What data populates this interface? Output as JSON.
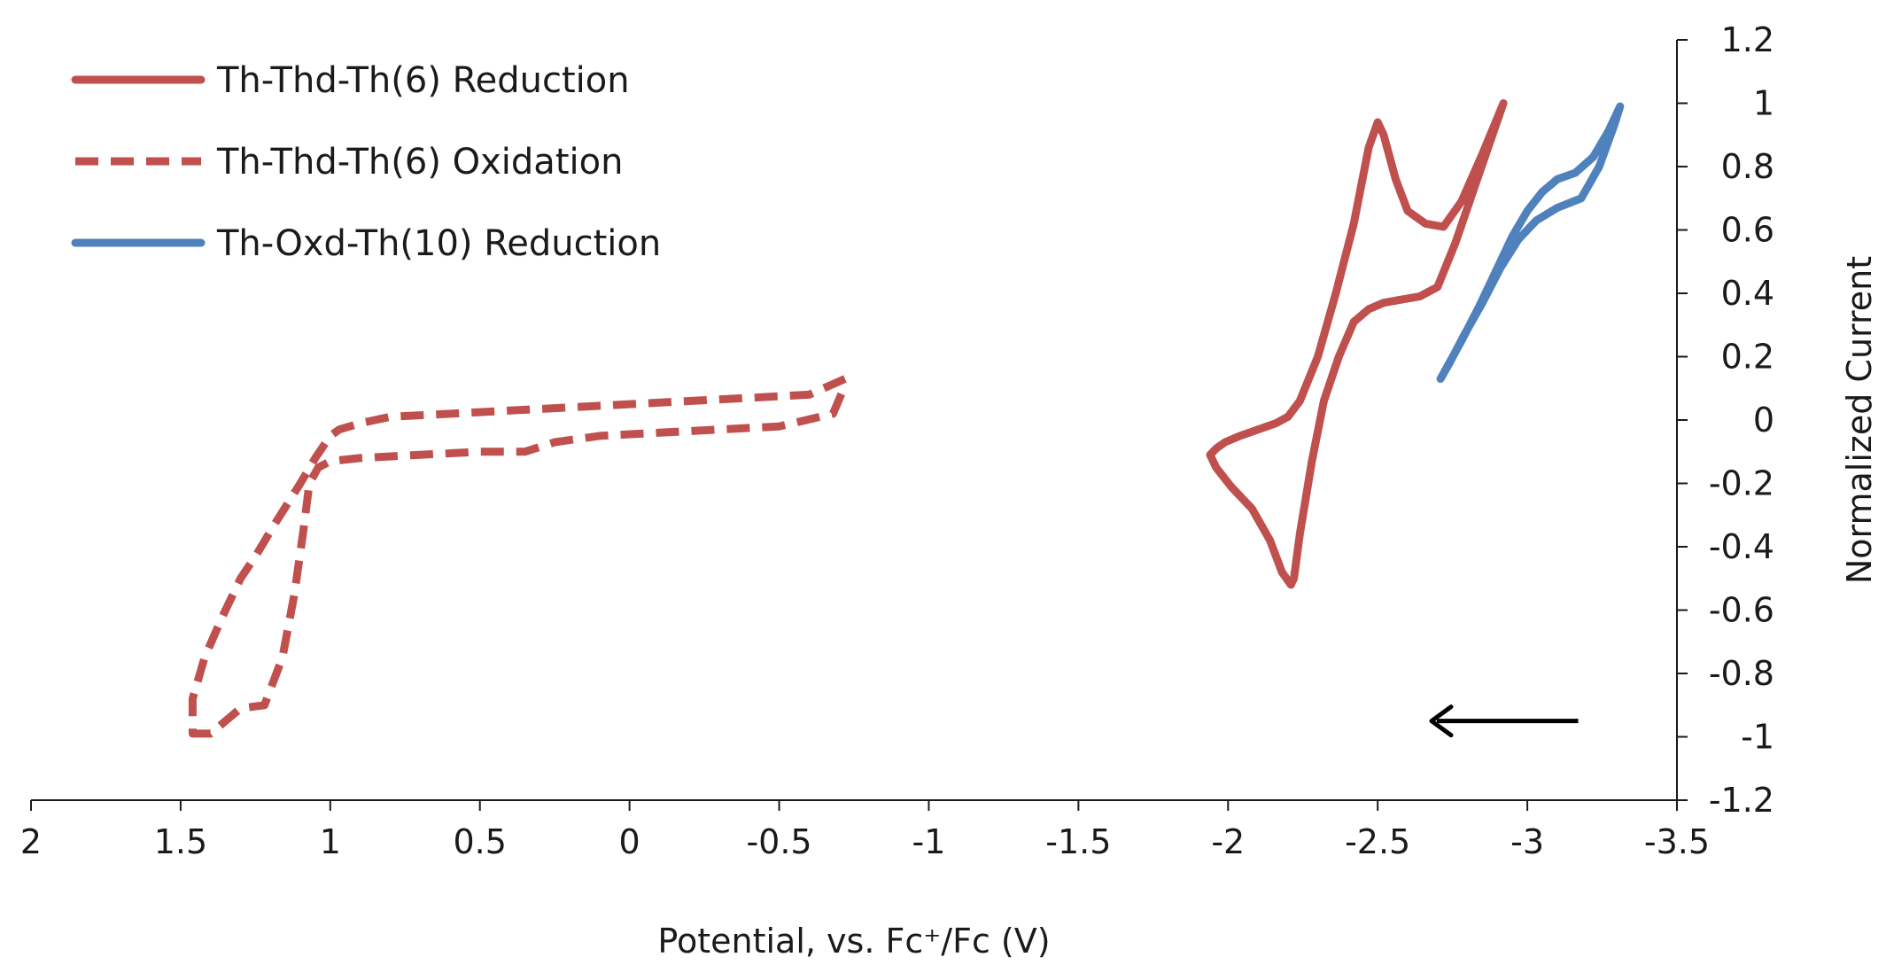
{
  "chart_data": {
    "type": "line",
    "title": "",
    "xlabel": "Potential, vs. Fc⁺/Fc (V)",
    "ylabel": "Normalized Current",
    "xlim": [
      2,
      -3.5
    ],
    "ylim": [
      -1.2,
      1.2
    ],
    "x_ticks": [
      2,
      1.5,
      1,
      0.5,
      0,
      -0.5,
      -1,
      -1.5,
      -2,
      -2.5,
      -3,
      -3.5
    ],
    "x_tick_labels": [
      "2",
      "1.5",
      "1",
      "0.5",
      "0",
      "-0.5",
      "-1",
      "-1.5",
      "-2",
      "-2.5",
      "-3",
      "-3.5"
    ],
    "y_ticks": [
      1.2,
      1,
      0.8,
      0.6,
      0.4,
      0.2,
      0,
      -0.2,
      -0.4,
      -0.6,
      -0.8,
      -1,
      -1.2
    ],
    "y_tick_labels": [
      "1.2",
      "1",
      "0.8",
      "0.6",
      "0.4",
      "0.2",
      "0",
      "-0.2",
      "-0.4",
      "-0.6",
      "-0.8",
      "-1",
      "-1.2"
    ],
    "grid": false,
    "legend_position": "top-left",
    "series": [
      {
        "name": "Th-Thd-Th(6) Reduction",
        "style": "solid",
        "color": "#c0504d",
        "x": [
          -2.92,
          -2.85,
          -2.78,
          -2.72,
          -2.66,
          -2.6,
          -2.56,
          -2.52,
          -2.5,
          -2.47,
          -2.42,
          -2.36,
          -2.3,
          -2.24,
          -2.2,
          -2.16,
          -2.1,
          -2.04,
          -1.99,
          -1.96,
          -1.94,
          -1.96,
          -2.01,
          -2.08,
          -2.14,
          -2.18,
          -2.21,
          -2.22,
          -2.24,
          -2.28,
          -2.32,
          -2.37,
          -2.42,
          -2.47,
          -2.52,
          -2.58,
          -2.64,
          -2.7,
          -2.76,
          -2.84,
          -2.92
        ],
        "y": [
          1.0,
          0.84,
          0.69,
          0.61,
          0.62,
          0.66,
          0.76,
          0.9,
          0.94,
          0.86,
          0.62,
          0.4,
          0.2,
          0.06,
          0.01,
          -0.01,
          -0.03,
          -0.05,
          -0.07,
          -0.09,
          -0.11,
          -0.15,
          -0.21,
          -0.28,
          -0.38,
          -0.48,
          -0.52,
          -0.5,
          -0.36,
          -0.13,
          0.06,
          0.2,
          0.31,
          0.35,
          0.37,
          0.38,
          0.39,
          0.42,
          0.56,
          0.78,
          1.0
        ]
      },
      {
        "name": "Th-Thd-Th(6) Oxidation",
        "style": "dashed",
        "color": "#c0504d",
        "x": [
          -0.72,
          -0.6,
          -0.4,
          -0.2,
          0.0,
          0.2,
          0.4,
          0.6,
          0.8,
          0.9,
          0.97,
          1.0,
          1.05,
          1.1,
          1.18,
          1.25,
          1.3,
          1.36,
          1.42,
          1.46,
          1.46,
          1.4,
          1.35,
          1.3,
          1.22,
          1.16,
          1.12,
          1.09,
          1.07,
          1.04,
          1.0,
          0.9,
          0.7,
          0.5,
          0.35,
          0.25,
          0.1,
          -0.1,
          -0.3,
          -0.5,
          -0.68,
          -0.72
        ],
        "y": [
          0.13,
          0.08,
          0.07,
          0.06,
          0.05,
          0.04,
          0.03,
          0.02,
          0.01,
          -0.01,
          -0.03,
          -0.05,
          -0.12,
          -0.2,
          -0.32,
          -0.43,
          -0.5,
          -0.62,
          -0.75,
          -0.88,
          -0.99,
          -0.99,
          -0.95,
          -0.91,
          -0.9,
          -0.75,
          -0.55,
          -0.35,
          -0.2,
          -0.15,
          -0.13,
          -0.12,
          -0.11,
          -0.1,
          -0.1,
          -0.07,
          -0.05,
          -0.04,
          -0.03,
          -0.02,
          0.02,
          0.11
        ]
      },
      {
        "name": "Th-Oxd-Th(10) Reduction",
        "style": "solid",
        "color": "#4f81bd",
        "x": [
          -2.71,
          -2.78,
          -2.84,
          -2.9,
          -2.95,
          -3.0,
          -3.05,
          -3.1,
          -3.16,
          -3.22,
          -3.27,
          -3.31,
          -3.29,
          -3.24,
          -3.18,
          -3.1,
          -3.03,
          -2.97,
          -2.91,
          -2.85,
          -2.79,
          -2.74,
          -2.71
        ],
        "y": [
          0.13,
          0.25,
          0.36,
          0.48,
          0.58,
          0.66,
          0.72,
          0.76,
          0.78,
          0.83,
          0.91,
          0.99,
          0.93,
          0.8,
          0.7,
          0.67,
          0.63,
          0.57,
          0.48,
          0.37,
          0.27,
          0.18,
          0.13
        ]
      }
    ],
    "annotations": [
      {
        "type": "arrow",
        "direction": "left",
        "x_from": -3.17,
        "x_to": -2.68,
        "y": -0.95
      }
    ]
  }
}
